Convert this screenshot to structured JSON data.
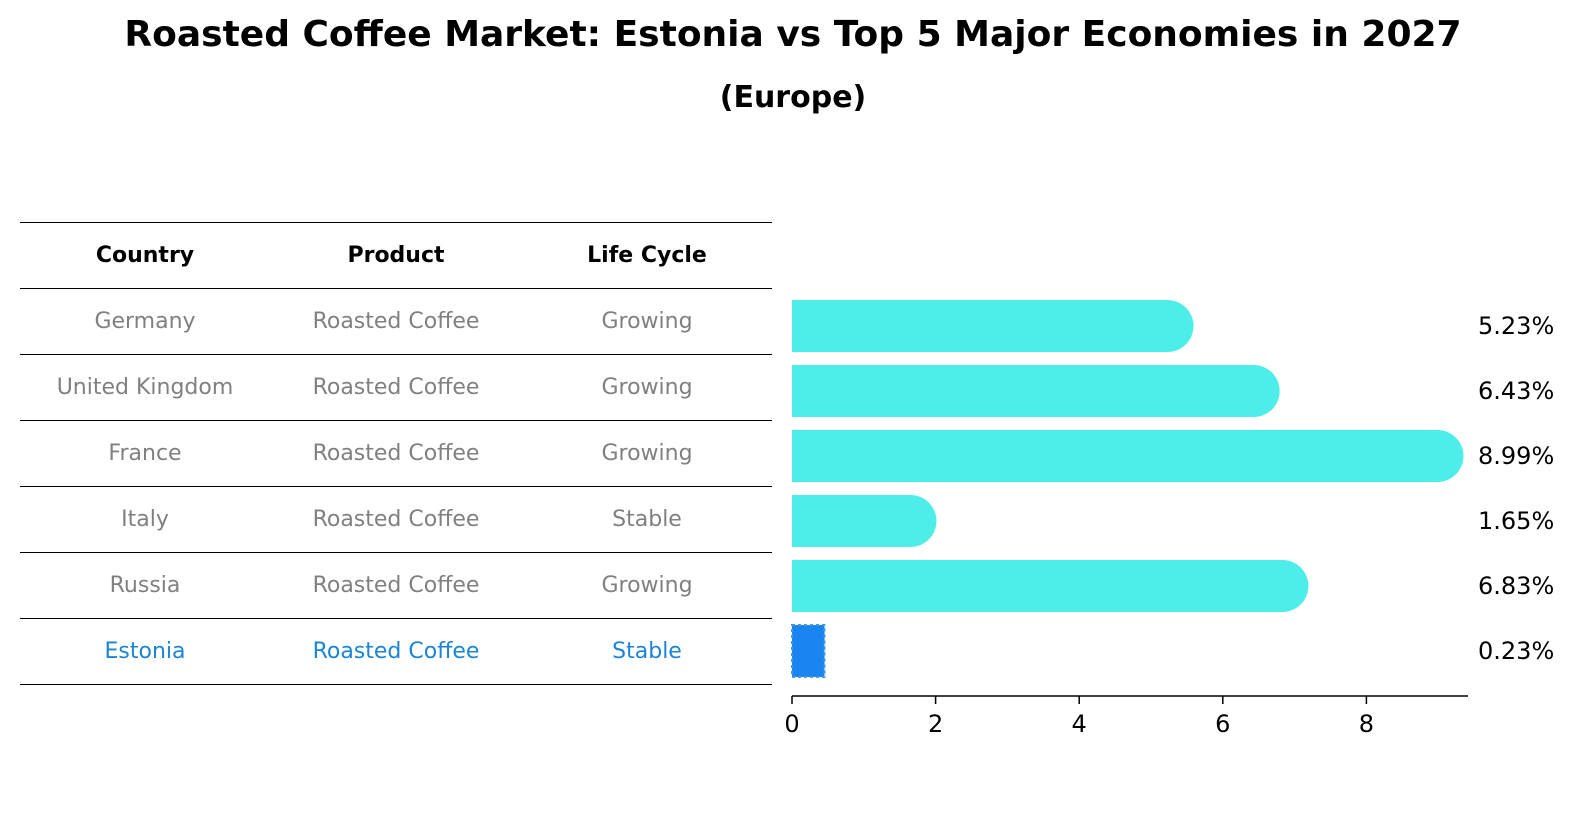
{
  "title": "Roasted Coffee Market: Estonia vs Top 5 Major Economies in 2027",
  "subtitle": "(Europe)",
  "table": {
    "headers": [
      "Country",
      "Product",
      "Life Cycle"
    ],
    "rows": [
      [
        "Germany",
        "Roasted Coffee",
        "Growing"
      ],
      [
        "United Kingdom",
        "Roasted Coffee",
        "Growing"
      ],
      [
        "France",
        "Roasted Coffee",
        "Growing"
      ],
      [
        "Italy",
        "Roasted Coffee",
        "Stable"
      ],
      [
        "Russia",
        "Roasted Coffee",
        "Growing"
      ],
      [
        "Estonia",
        "Roasted Coffee",
        "Stable"
      ]
    ]
  },
  "colors": {
    "bar": "#4deee9",
    "highlight_bar": "#1a85f0",
    "highlight_text": "#1a85d6"
  },
  "chart_data": {
    "type": "bar",
    "orientation": "horizontal",
    "categories": [
      "Germany",
      "United Kingdom",
      "France",
      "Italy",
      "Russia",
      "Estonia"
    ],
    "values": [
      5.23,
      6.43,
      8.99,
      1.65,
      6.83,
      0.23
    ],
    "value_labels": [
      "5.23%",
      "6.43%",
      "8.99%",
      "1.65%",
      "6.83%",
      "0.23%"
    ],
    "xticks": [
      0,
      2,
      4,
      6,
      8
    ],
    "xlim": [
      0,
      9.5
    ],
    "highlight": "Estonia"
  }
}
